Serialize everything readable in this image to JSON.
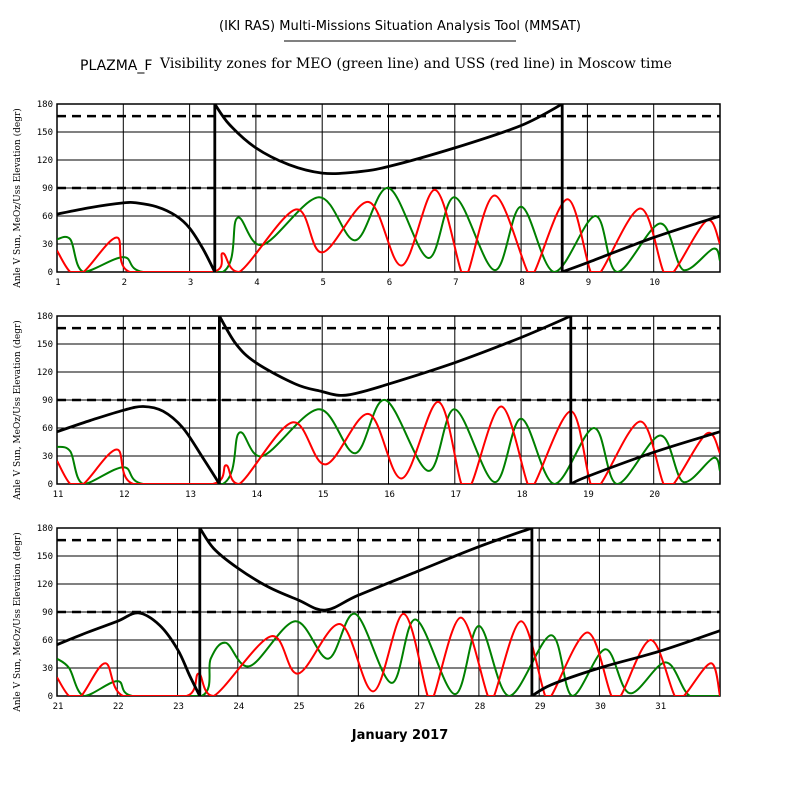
{
  "header": {
    "tool_title": "(IKI RAS) Multi-Missions Situation Analysis Tool (MMSAT)",
    "mission": "PLAZMA_F",
    "subtitle": "Visibility zones for MEO (green line) and USS (red line) in Moscow time"
  },
  "footer": {
    "month_label": "January 2017"
  },
  "colors": {
    "meo": "#008000",
    "uss": "#ff0000",
    "sun_angle": "#000000",
    "grid": "#000000"
  },
  "chart_data": {
    "type": "line",
    "ylabel": "Anle V Sun, MeOz/Uss Elevation (degr)",
    "yticks": [
      0,
      30,
      60,
      90,
      120,
      150,
      180
    ],
    "ylim": [
      0,
      180
    ],
    "reference_lines": [
      90,
      167
    ],
    "panels": [
      {
        "xlim": [
          1,
          11
        ],
        "xticks": [
          1,
          2,
          3,
          4,
          5,
          6,
          7,
          8,
          9,
          10
        ],
        "sun_angle": [
          [
            1,
            62
          ],
          [
            1.5,
            69
          ],
          [
            2,
            74
          ],
          [
            2.2,
            74
          ],
          [
            2.5,
            70
          ],
          [
            2.8,
            60
          ],
          [
            3.0,
            47
          ],
          [
            3.2,
            25
          ],
          [
            3.38,
            0
          ],
          [
            3.38,
            180
          ],
          [
            3.6,
            158
          ],
          [
            4,
            133
          ],
          [
            4.5,
            115
          ],
          [
            5,
            106
          ],
          [
            5.5,
            107
          ],
          [
            6,
            113
          ],
          [
            7,
            133
          ],
          [
            8,
            157
          ],
          [
            8.62,
            180
          ],
          [
            8.62,
            0
          ],
          [
            9,
            10
          ],
          [
            10,
            37
          ],
          [
            11,
            60
          ]
        ],
        "meo_elevation": [
          [
            1,
            35
          ],
          [
            1.2,
            35
          ],
          [
            1.4,
            0
          ],
          [
            2,
            16
          ],
          [
            2.3,
            0
          ],
          [
            3.5,
            0
          ],
          [
            3.72,
            58
          ],
          [
            4.1,
            29
          ],
          [
            4.95,
            80
          ],
          [
            5.5,
            34
          ],
          [
            6.0,
            90
          ],
          [
            6.6,
            15
          ],
          [
            7.0,
            80
          ],
          [
            7.6,
            2
          ],
          [
            8.0,
            70
          ],
          [
            8.5,
            0
          ],
          [
            9.12,
            60
          ],
          [
            9.45,
            0
          ],
          [
            10.1,
            52
          ],
          [
            10.45,
            2
          ],
          [
            10.9,
            25
          ],
          [
            11,
            12
          ]
        ],
        "uss_elevation": [
          [
            1,
            23
          ],
          [
            1.2,
            0
          ],
          [
            1.4,
            0
          ],
          [
            1.9,
            37
          ],
          [
            2.1,
            0
          ],
          [
            3.35,
            0
          ],
          [
            3.5,
            20
          ],
          [
            3.75,
            0
          ],
          [
            4.6,
            67
          ],
          [
            5.0,
            21
          ],
          [
            5.7,
            75
          ],
          [
            6.2,
            7
          ],
          [
            6.7,
            88
          ],
          [
            7.1,
            0
          ],
          [
            7.2,
            0
          ],
          [
            7.6,
            82
          ],
          [
            8.1,
            0
          ],
          [
            8.2,
            0
          ],
          [
            8.7,
            78
          ],
          [
            9.05,
            0
          ],
          [
            9.2,
            0
          ],
          [
            9.8,
            68
          ],
          [
            10.15,
            0
          ],
          [
            10.3,
            0
          ],
          [
            10.8,
            55
          ],
          [
            11,
            30
          ]
        ]
      },
      {
        "xlim": [
          11,
          21
        ],
        "xticks": [
          11,
          12,
          13,
          14,
          15,
          16,
          17,
          18,
          19,
          20
        ],
        "sun_angle": [
          [
            11,
            56
          ],
          [
            11.5,
            68
          ],
          [
            12,
            79
          ],
          [
            12.3,
            83
          ],
          [
            12.6,
            78
          ],
          [
            12.9,
            60
          ],
          [
            13.2,
            28
          ],
          [
            13.45,
            0
          ],
          [
            13.45,
            180
          ],
          [
            13.7,
            150
          ],
          [
            14,
            130
          ],
          [
            14.6,
            107
          ],
          [
            15,
            99
          ],
          [
            15.25,
            95
          ],
          [
            15.5,
            97
          ],
          [
            16,
            107
          ],
          [
            17,
            130
          ],
          [
            18,
            157
          ],
          [
            18.75,
            180
          ],
          [
            18.75,
            0
          ],
          [
            19,
            8
          ],
          [
            20,
            34
          ],
          [
            21,
            56
          ]
        ],
        "meo_elevation": [
          [
            11,
            40
          ],
          [
            11.2,
            35
          ],
          [
            11.4,
            0
          ],
          [
            12,
            18
          ],
          [
            12.3,
            0
          ],
          [
            13.5,
            0
          ],
          [
            13.75,
            55
          ],
          [
            14.1,
            30
          ],
          [
            14.95,
            80
          ],
          [
            15.5,
            33
          ],
          [
            15.95,
            90
          ],
          [
            16.6,
            14
          ],
          [
            17.0,
            80
          ],
          [
            17.6,
            2
          ],
          [
            18.0,
            70
          ],
          [
            18.5,
            0
          ],
          [
            19.1,
            60
          ],
          [
            19.45,
            0
          ],
          [
            20.1,
            52
          ],
          [
            20.45,
            2
          ],
          [
            20.9,
            28
          ],
          [
            21,
            14
          ]
        ],
        "uss_elevation": [
          [
            11,
            25
          ],
          [
            11.2,
            0
          ],
          [
            11.4,
            0
          ],
          [
            11.9,
            37
          ],
          [
            12.15,
            0
          ],
          [
            13.35,
            0
          ],
          [
            13.55,
            20
          ],
          [
            13.75,
            0
          ],
          [
            14.55,
            66
          ],
          [
            15.05,
            21
          ],
          [
            15.7,
            75
          ],
          [
            16.2,
            6
          ],
          [
            16.75,
            88
          ],
          [
            17.1,
            0
          ],
          [
            17.25,
            0
          ],
          [
            17.7,
            83
          ],
          [
            18.1,
            0
          ],
          [
            18.2,
            0
          ],
          [
            18.75,
            78
          ],
          [
            19.05,
            0
          ],
          [
            19.2,
            0
          ],
          [
            19.8,
            67
          ],
          [
            20.15,
            0
          ],
          [
            20.3,
            0
          ],
          [
            20.8,
            54
          ],
          [
            21,
            33
          ]
        ]
      },
      {
        "xlim": [
          21,
          32
        ],
        "xticks": [
          21,
          22,
          23,
          24,
          25,
          26,
          27,
          28,
          29,
          30,
          31
        ],
        "sun_angle": [
          [
            21,
            55
          ],
          [
            21.5,
            68
          ],
          [
            22,
            80
          ],
          [
            22.35,
            89
          ],
          [
            22.7,
            76
          ],
          [
            23.0,
            50
          ],
          [
            23.2,
            22
          ],
          [
            23.37,
            0
          ],
          [
            23.37,
            180
          ],
          [
            23.6,
            158
          ],
          [
            24,
            137
          ],
          [
            24.5,
            117
          ],
          [
            25,
            103
          ],
          [
            25.45,
            92
          ],
          [
            26,
            108
          ],
          [
            27,
            134
          ],
          [
            28,
            160
          ],
          [
            28.88,
            180
          ],
          [
            28.88,
            0
          ],
          [
            29.2,
            12
          ],
          [
            30,
            30
          ],
          [
            31,
            48
          ],
          [
            32,
            70
          ]
        ],
        "meo_elevation": [
          [
            21,
            40
          ],
          [
            21.2,
            30
          ],
          [
            21.45,
            0
          ],
          [
            22,
            16
          ],
          [
            22.25,
            0
          ],
          [
            23.4,
            0
          ],
          [
            23.55,
            40
          ],
          [
            23.8,
            57
          ],
          [
            24.2,
            32
          ],
          [
            24.95,
            80
          ],
          [
            25.5,
            40
          ],
          [
            25.95,
            88
          ],
          [
            26.55,
            14
          ],
          [
            26.95,
            82
          ],
          [
            27.6,
            2
          ],
          [
            28.0,
            75
          ],
          [
            28.5,
            0
          ],
          [
            29.2,
            65
          ],
          [
            29.55,
            0
          ],
          [
            30.1,
            50
          ],
          [
            30.5,
            3
          ],
          [
            31.1,
            36
          ],
          [
            31.5,
            0
          ],
          [
            32,
            0
          ]
        ],
        "uss_elevation": [
          [
            21,
            20
          ],
          [
            21.2,
            0
          ],
          [
            21.4,
            0
          ],
          [
            21.8,
            35
          ],
          [
            22.1,
            0
          ],
          [
            23.15,
            0
          ],
          [
            23.35,
            24
          ],
          [
            23.6,
            0
          ],
          [
            24.55,
            64
          ],
          [
            25.0,
            24
          ],
          [
            25.7,
            77
          ],
          [
            26.25,
            5
          ],
          [
            26.75,
            88
          ],
          [
            27.15,
            0
          ],
          [
            27.25,
            0
          ],
          [
            27.7,
            84
          ],
          [
            28.15,
            0
          ],
          [
            28.25,
            0
          ],
          [
            28.7,
            80
          ],
          [
            29.1,
            0
          ],
          [
            29.2,
            0
          ],
          [
            29.8,
            68
          ],
          [
            30.2,
            0
          ],
          [
            30.35,
            0
          ],
          [
            30.85,
            60
          ],
          [
            31.25,
            0
          ],
          [
            31.4,
            0
          ],
          [
            31.85,
            35
          ],
          [
            32,
            0
          ]
        ]
      }
    ]
  }
}
